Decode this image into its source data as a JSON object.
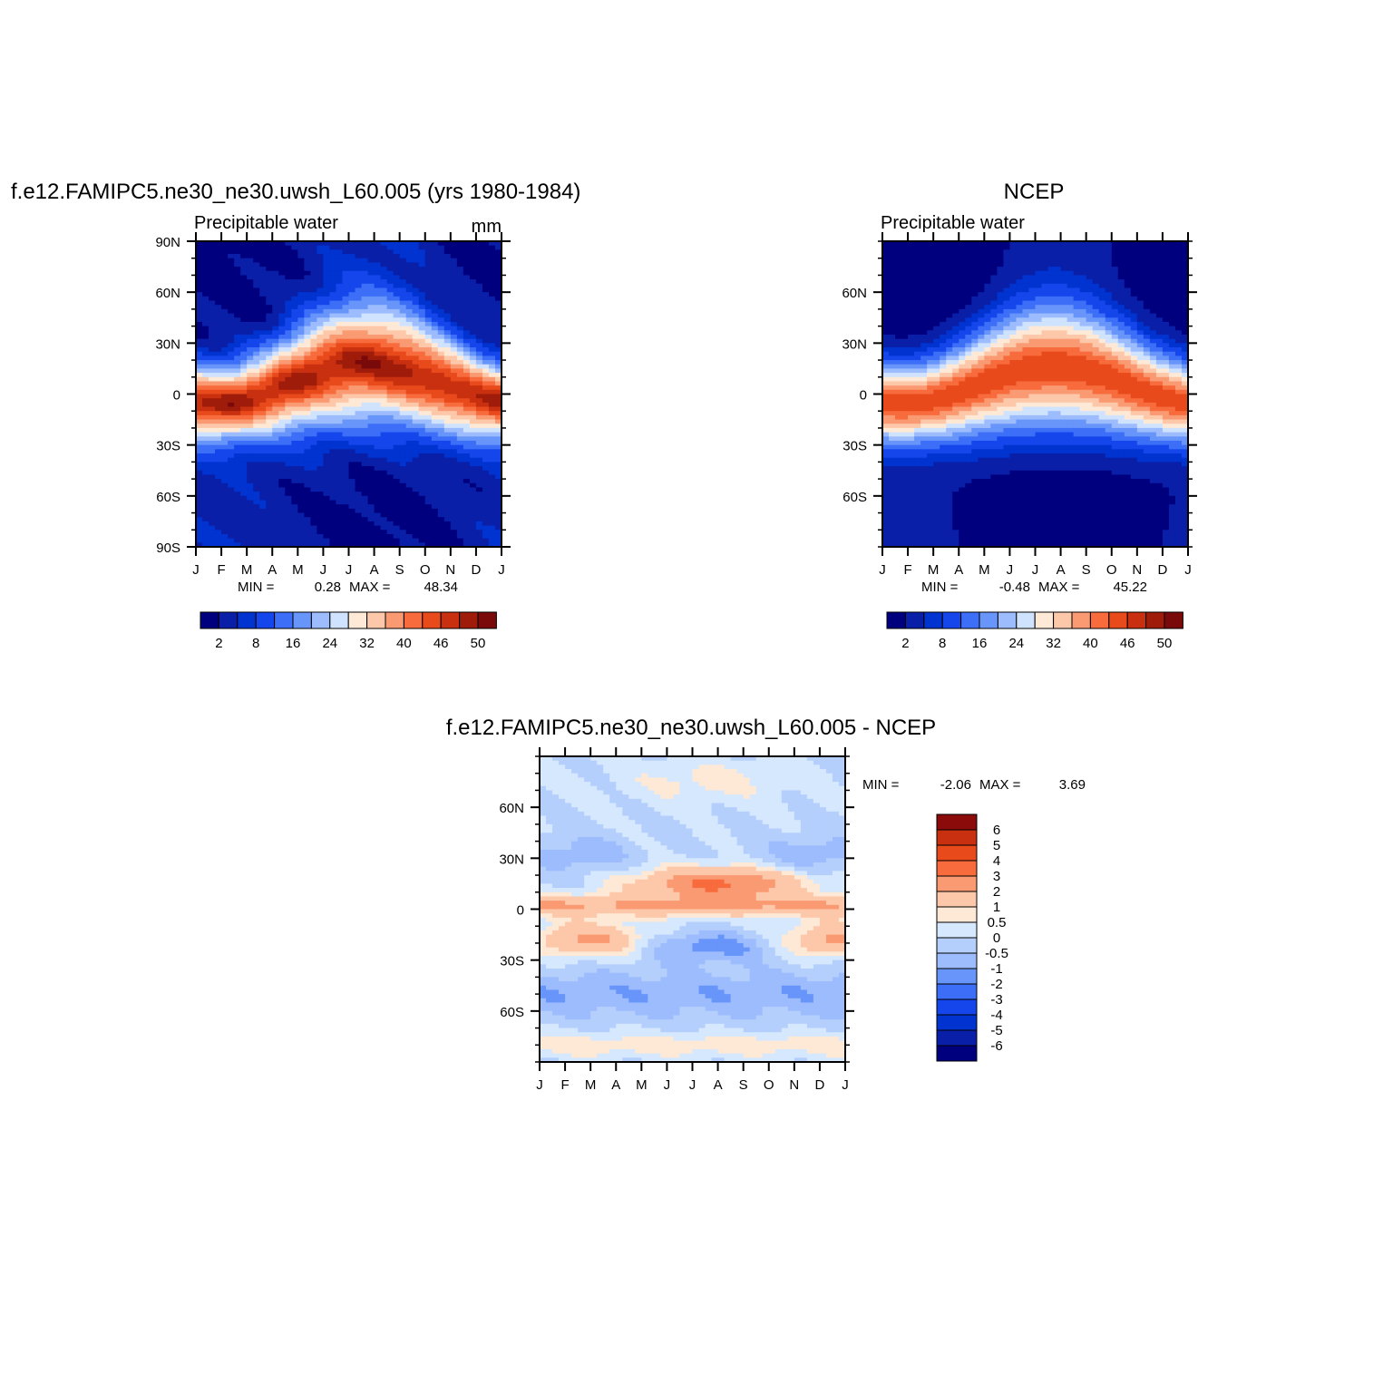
{
  "chart_data": [
    {
      "type": "heatmap",
      "title": "f.e12.FAMIPC5.ne30_ne30.uwsh_L60.005 (yrs 1980-1984)",
      "subtitle": "Precipitable water",
      "units": "mm",
      "x_labels": [
        "J",
        "F",
        "M",
        "A",
        "M",
        "J",
        "J",
        "A",
        "S",
        "O",
        "N",
        "D",
        "J"
      ],
      "y_labels": [
        "90N",
        "60N",
        "30N",
        "0",
        "30S",
        "60S",
        "90S"
      ],
      "ylim": [
        -90,
        90
      ],
      "min_label": "MIN =",
      "min_value": "0.28",
      "max_label": "MAX =",
      "max_value": "48.34",
      "colorbar_labels": [
        "2",
        "8",
        "16",
        "24",
        "32",
        "40",
        "46",
        "50"
      ]
    },
    {
      "type": "heatmap",
      "title": "NCEP",
      "subtitle": "Precipitable water",
      "x_labels": [
        "J",
        "F",
        "M",
        "A",
        "M",
        "J",
        "J",
        "A",
        "S",
        "O",
        "N",
        "D",
        "J"
      ],
      "y_labels": [
        "60N",
        "30N",
        "0",
        "30S",
        "60S"
      ],
      "ylim": [
        -90,
        90
      ],
      "min_label": "MIN =",
      "min_value": "-0.48",
      "max_label": "MAX =",
      "max_value": "45.22",
      "colorbar_labels": [
        "2",
        "8",
        "16",
        "24",
        "32",
        "40",
        "46",
        "50"
      ]
    },
    {
      "type": "heatmap",
      "title": "f.e12.FAMIPC5.ne30_ne30.uwsh_L60.005 - NCEP",
      "x_labels": [
        "J",
        "F",
        "M",
        "A",
        "M",
        "J",
        "J",
        "A",
        "S",
        "O",
        "N",
        "D",
        "J"
      ],
      "y_labels": [
        "60N",
        "30N",
        "0",
        "30S",
        "60S"
      ],
      "ylim": [
        -90,
        90
      ],
      "min_label": "MIN =",
      "min_value": "-2.06",
      "max_label": "MAX =",
      "max_value": "3.69",
      "colorbar_labels": [
        "6",
        "5",
        "4",
        "3",
        "2",
        "1",
        "0.5",
        "0",
        "-0.5",
        "-1",
        "-2",
        "-3",
        "-4",
        "-5",
        "-6"
      ]
    }
  ],
  "palette": [
    "#00007f",
    "#0a1fa8",
    "#0033d0",
    "#1446ec",
    "#3c6ef7",
    "#6895fa",
    "#9dbcfd",
    "#cfe3fe",
    "#fde9d6",
    "#fdc8aa",
    "#fa9a73",
    "#f76b3c",
    "#e84a1c",
    "#c9300f",
    "#a01c0a",
    "#7a0a0a"
  ],
  "diff_palette": [
    "#00007f",
    "#0a1fa8",
    "#0033d0",
    "#1446ec",
    "#3c6ef7",
    "#6895fa",
    "#9dbcfd",
    "#b5cffd",
    "#d6e8fe",
    "#fde9d6",
    "#fdc8aa",
    "#fa9a73",
    "#f76b3c",
    "#e84a1c",
    "#c9300f",
    "#8b0a0a"
  ]
}
